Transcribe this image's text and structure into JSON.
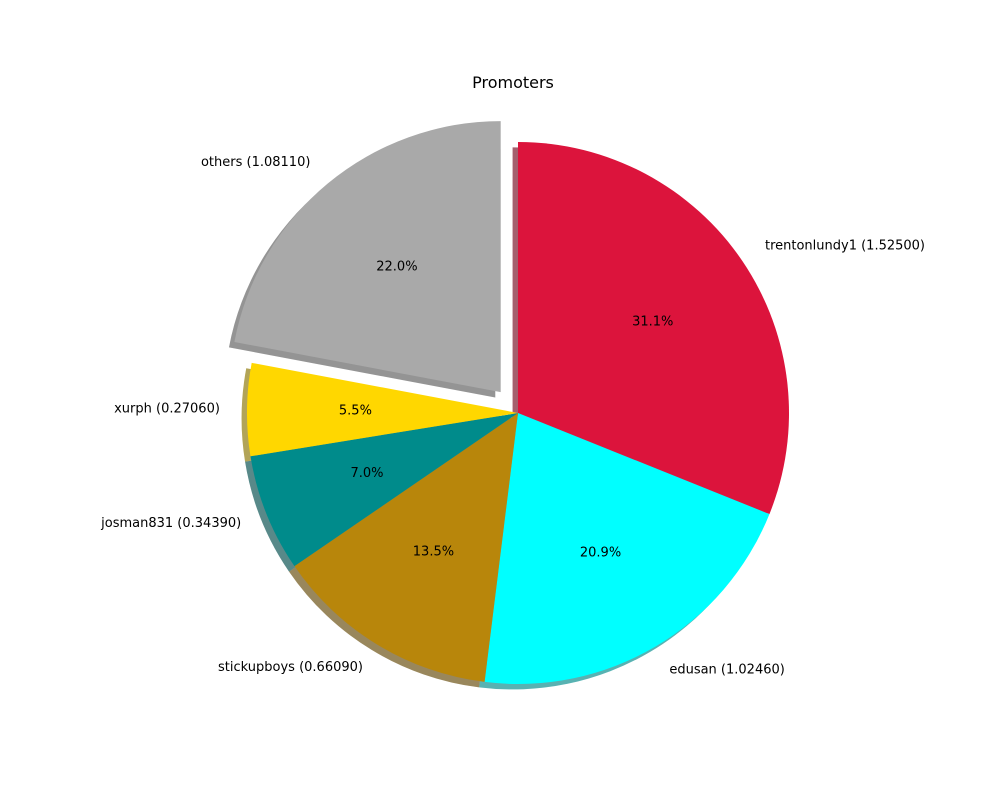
{
  "chart_data": {
    "type": "pie",
    "title": "Promoters",
    "start_angle_deg": 90,
    "direction": "clockwise",
    "shadow": true,
    "slices": [
      {
        "label": "trentonlundy1 (1.52500)",
        "value": 1.525,
        "pct_label": "31.1%",
        "color": "#DC143C",
        "exploded": false
      },
      {
        "label": "edusan (1.02460)",
        "value": 1.0246,
        "pct_label": "20.9%",
        "color": "#00FFFF",
        "exploded": false
      },
      {
        "label": "stickupboys (0.66090)",
        "value": 0.6609,
        "pct_label": "13.5%",
        "color": "#B8860B",
        "exploded": false
      },
      {
        "label": "josman831 (0.34390)",
        "value": 0.3439,
        "pct_label": "7.0%",
        "color": "#008B8B",
        "exploded": false
      },
      {
        "label": "xurph (0.27060)",
        "value": 0.2706,
        "pct_label": "5.5%",
        "color": "#FFD700",
        "exploded": false
      },
      {
        "label": "others (1.08110)",
        "value": 1.0811,
        "pct_label": "22.0%",
        "color": "#A9A9A9",
        "exploded": true
      }
    ]
  }
}
